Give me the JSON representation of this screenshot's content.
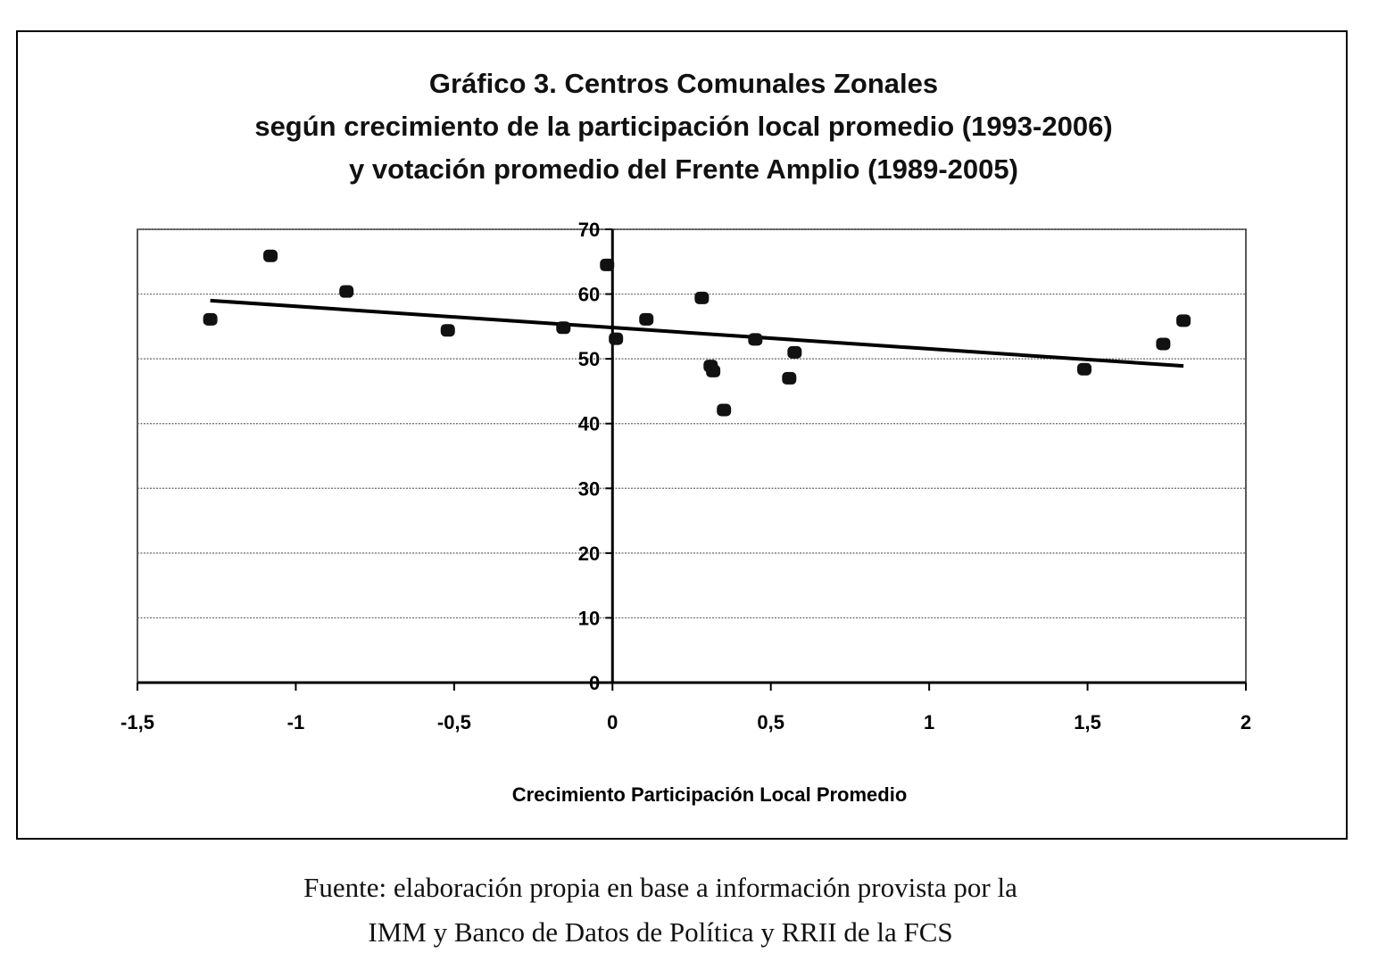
{
  "chart_data": {
    "type": "scatter",
    "title_lines": [
      "Gráfico 3. Centros Comunales Zonales",
      "según crecimiento de la participación local promedio (1993-2006)",
      "y votación promedio del Frente Amplio (1989-2005)"
    ],
    "xlabel": "Crecimiento Participación Local Promedio",
    "ylabel": "",
    "xlim": [
      -1.5,
      2
    ],
    "ylim": [
      0,
      70
    ],
    "xticks": [
      -1.5,
      -1,
      -0.5,
      0,
      0.5,
      1,
      1.5,
      2
    ],
    "xtick_labels": [
      "-1,5",
      "-1",
      "-0,5",
      "0",
      "0,5",
      "1",
      "1,5",
      "2"
    ],
    "yticks": [
      0,
      10,
      20,
      30,
      40,
      50,
      60,
      70
    ],
    "ytick_labels": [
      "0",
      "10",
      "20",
      "30",
      "40",
      "50",
      "60",
      "70"
    ],
    "grid": "horizontal dotted",
    "points": [
      {
        "x": -1.27,
        "y": 56.1
      },
      {
        "x": -1.08,
        "y": 65.9
      },
      {
        "x": -0.84,
        "y": 60.4
      },
      {
        "x": -0.52,
        "y": 54.4
      },
      {
        "x": -0.155,
        "y": 54.8
      },
      {
        "x": -0.017,
        "y": 64.5
      },
      {
        "x": 0.011,
        "y": 53.1
      },
      {
        "x": 0.107,
        "y": 56.1
      },
      {
        "x": 0.282,
        "y": 59.4
      },
      {
        "x": 0.31,
        "y": 48.9
      },
      {
        "x": 0.318,
        "y": 48.1
      },
      {
        "x": 0.352,
        "y": 42.1
      },
      {
        "x": 0.451,
        "y": 53.0
      },
      {
        "x": 0.558,
        "y": 47.0
      },
      {
        "x": 0.575,
        "y": 51.0
      },
      {
        "x": 1.49,
        "y": 48.4
      },
      {
        "x": 1.739,
        "y": 52.3
      },
      {
        "x": 1.803,
        "y": 55.9
      }
    ],
    "trendline": {
      "x": [
        -1.27,
        1.803
      ],
      "y": [
        59.0,
        48.9
      ]
    }
  },
  "source_lines": [
    "Fuente: elaboración propia en base a información provista por la",
    "IMM y Banco de Datos de Política y RRII de la FCS"
  ]
}
